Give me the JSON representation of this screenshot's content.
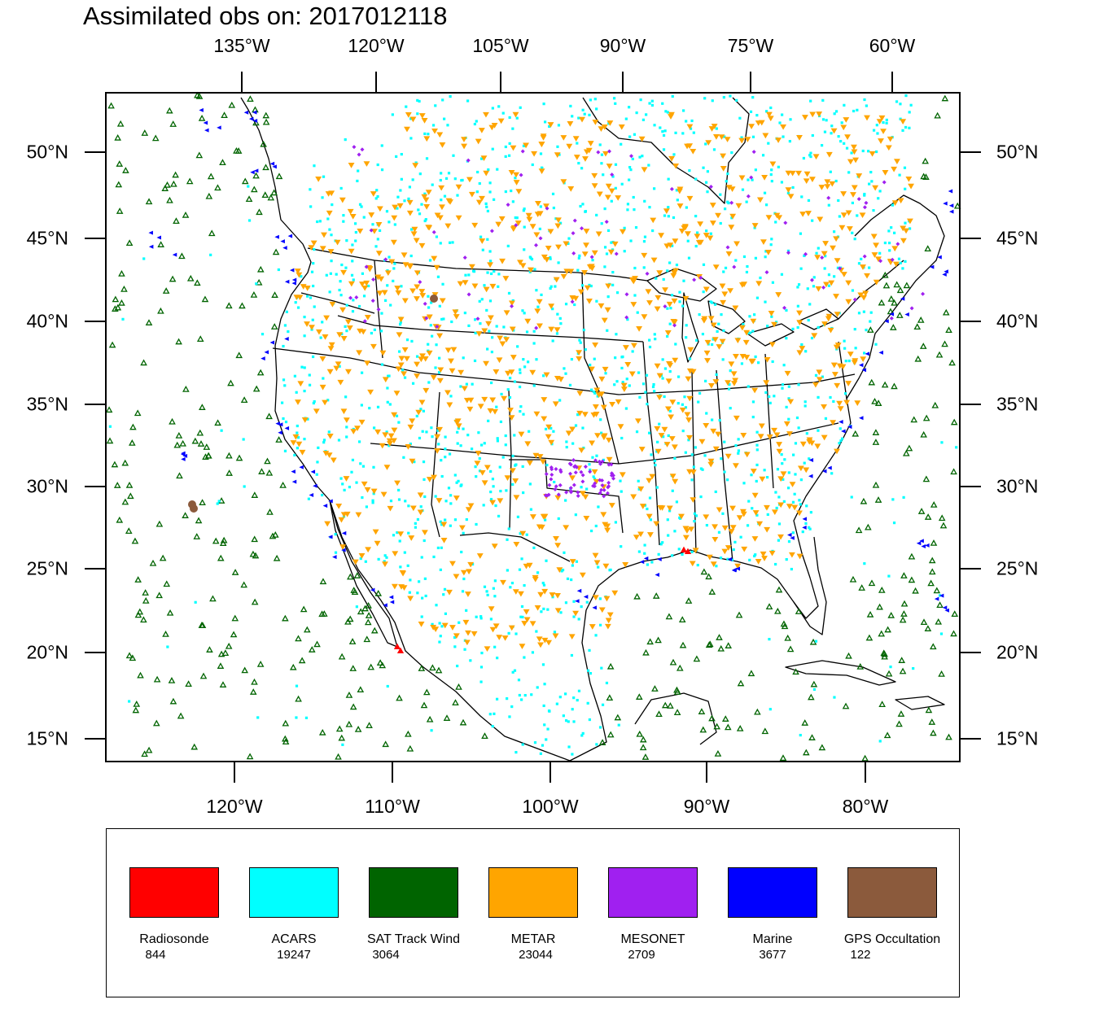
{
  "title": "Assimilated obs on: 2017012118",
  "map": {
    "top_lon_labels": [
      "135°W",
      "120°W",
      "105°W",
      "90°W",
      "75°W",
      "60°W"
    ],
    "bottom_lon_labels": [
      "120°W",
      "110°W",
      "100°W",
      "90°W",
      "80°W"
    ],
    "lat_labels": [
      "50°N",
      "45°N",
      "40°N",
      "35°N",
      "30°N",
      "25°N",
      "20°N",
      "15°N"
    ],
    "frame_color": "#000000",
    "region": "Continental United States, southern Canada, Mexico, Caribbean"
  },
  "legend": [
    {
      "name": "Radiosonde",
      "count": "844",
      "color": "#ff0000",
      "marker": "triangle-up"
    },
    {
      "name": "ACARS",
      "count": "19247",
      "color": "#00ffff",
      "marker": "square"
    },
    {
      "name": "SAT Track Wind",
      "count": "3064",
      "color": "#006400",
      "marker": "triangle-up-open"
    },
    {
      "name": "METAR",
      "count": "23044",
      "color": "#ffa500",
      "marker": "triangle-down"
    },
    {
      "name": "MESONET",
      "count": "2709",
      "color": "#a020f0",
      "marker": "diamond"
    },
    {
      "name": "Marine",
      "count": "3677",
      "color": "#0000ff",
      "marker": "triangle-left"
    },
    {
      "name": "GPS Occultation",
      "count": "122",
      "color": "#8b5a3c",
      "marker": "circle"
    }
  ]
}
